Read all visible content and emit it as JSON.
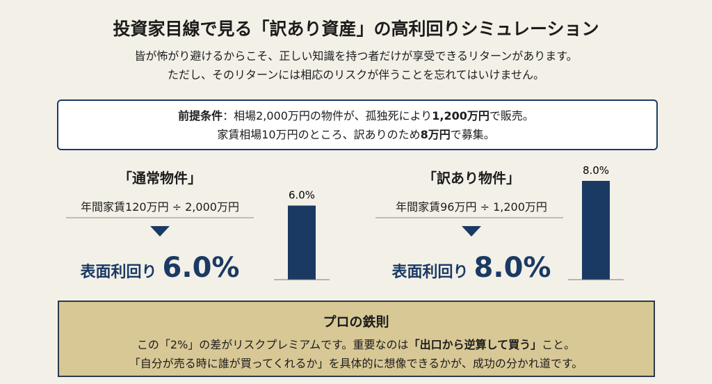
{
  "header": {
    "title": "投資家目線で見る「訳あり資産」の高利回りシミュレーション",
    "lines": [
      "皆が怖がり避けるからこそ、正しい知識を持つ者だけが享受できるリターンがあります。",
      "ただし、そのリターンには相応のリスクが伴うことを忘れてはいけません。"
    ]
  },
  "premise": {
    "lines": [
      [
        {
          "text": "前提条件",
          "bold": true
        },
        {
          "text": "：相場2,000万円の物件が、孤独死により",
          "bold": false
        },
        {
          "text": "1,200万円",
          "bold": true
        },
        {
          "text": "で販売。",
          "bold": false
        }
      ],
      [
        {
          "text": "家賃相場10万円のところ、訳ありのため",
          "bold": false
        },
        {
          "text": "8万円",
          "bold": true
        },
        {
          "text": "で募集。",
          "bold": false
        }
      ]
    ]
  },
  "ylim": [
    0,
    8
  ],
  "cards": [
    {
      "title": "「通常物件」",
      "formula": "年間家賃120万円 ÷ 2,000万円",
      "yield_label": "表面利回り",
      "value": 6.0,
      "value_label": "6.0%"
    },
    {
      "title": "「訳あり物件」",
      "formula": "年間家賃96万円 ÷ 1,200万円",
      "yield_label": "表面利回り",
      "value": 8.0,
      "value_label": "8.0%"
    }
  ],
  "rule": {
    "title": "プロの鉄則",
    "lines": [
      [
        {
          "text": "この「2%」の差がリスクプレミアムです。重要なのは",
          "bold": false
        },
        {
          "text": "「出口から逆算して買う」",
          "bold": true
        },
        {
          "text": "こと。",
          "bold": false
        }
      ],
      [
        {
          "text": "「自分が売る時に誰が買ってくれるか」を具体的に想像できるかが、成功の分かれ道です。",
          "bold": false
        }
      ]
    ]
  }
}
